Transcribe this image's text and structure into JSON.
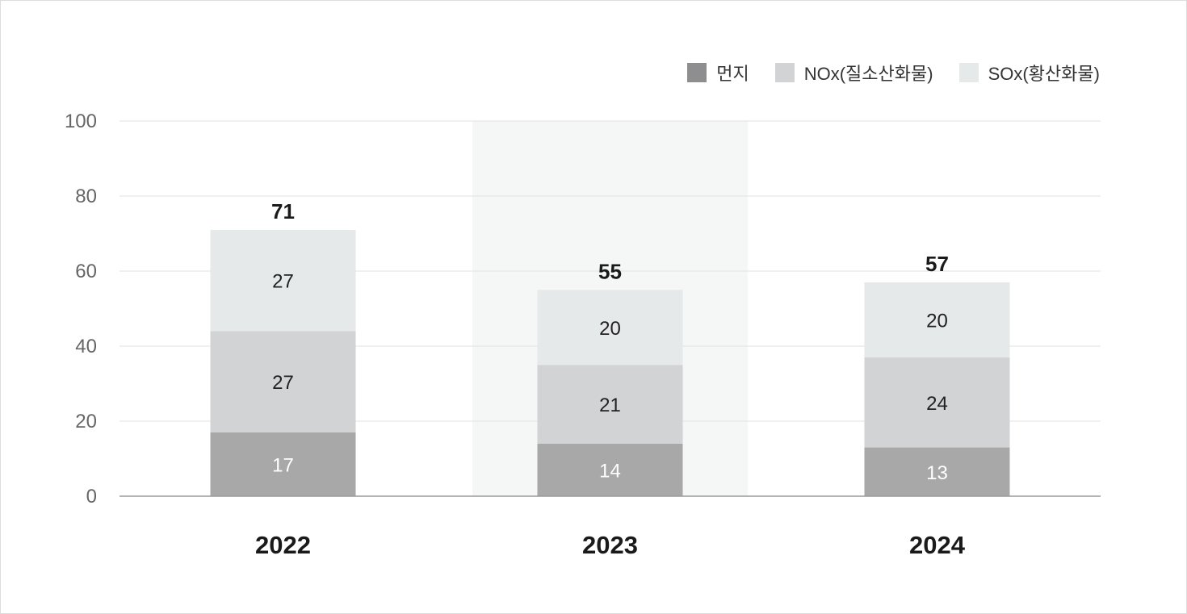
{
  "chart_data": {
    "type": "bar",
    "stacked": true,
    "categories": [
      "2022",
      "2023",
      "2024"
    ],
    "series": [
      {
        "name": "먼지",
        "values": [
          17,
          14,
          13
        ],
        "color": "#a8a8a8",
        "legend_color": "#8e8e90",
        "label_color": "#ffffff"
      },
      {
        "name": "NOx(질소산화물)",
        "values": [
          27,
          21,
          24
        ],
        "color": "#d2d3d4",
        "legend_color": "#d2d3d4",
        "label_color": "#222222"
      },
      {
        "name": "SOx(황산화물)",
        "values": [
          27,
          20,
          20
        ],
        "color": "#e6e9ea",
        "legend_color": "#e6e9ea",
        "label_color": "#222222"
      }
    ],
    "totals": [
      "71",
      "55",
      "57"
    ],
    "y_ticks": [
      "0",
      "20",
      "40",
      "60",
      "80",
      "100"
    ],
    "ylim": [
      0,
      100
    ],
    "highlighted_category": "2023",
    "highlight_color": "#f5f6f6",
    "grid": true,
    "legend_position": "top-right",
    "title": "",
    "xlabel": "",
    "ylabel": ""
  }
}
